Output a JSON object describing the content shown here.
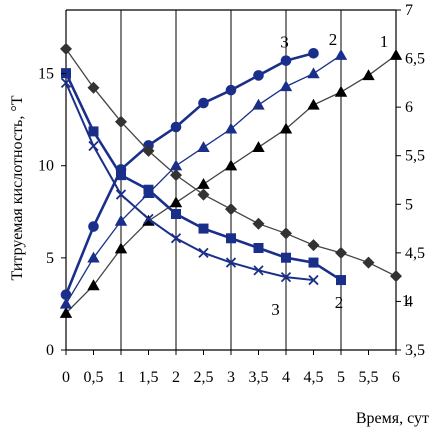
{
  "chart_data": {
    "type": "line",
    "title": "",
    "xlabel": "Время, сут",
    "ylabel": "Титруемая кислотность, °Т",
    "ylabel_right": "",
    "x_ticks": [
      "0",
      "0,5",
      "1",
      "1,5",
      "2",
      "2,5",
      "3",
      "3,5",
      "4",
      "4,5",
      "5",
      "5,5",
      "6"
    ],
    "y_left_ticks": [
      "0",
      "5",
      "10",
      "15"
    ],
    "y_right_ticks": [
      "3,5",
      "4",
      "4,5",
      "5",
      "5,5",
      "6",
      "6,5",
      "7"
    ],
    "xlim": [
      0,
      6
    ],
    "ylim_left": [
      0,
      18.45
    ],
    "ylim_right": [
      3.5,
      7
    ],
    "grid": "vertical",
    "series": [
      {
        "label": "1",
        "axis": "left",
        "marker": "triangle",
        "color": "#444444",
        "marker_color": "#000000",
        "x": [
          0,
          0.5,
          1,
          1.5,
          2,
          2.5,
          3,
          3.5,
          4,
          4.5,
          5,
          5.5,
          6
        ],
        "y": [
          2.0,
          3.5,
          5.5,
          7.0,
          8.0,
          9.0,
          10.0,
          11.0,
          12.0,
          13.3,
          14.0,
          14.9,
          16.0
        ]
      },
      {
        "label": "2",
        "axis": "left",
        "marker": "triangle",
        "color": "#1a2f8a",
        "marker_color": "#1a2f8a",
        "x": [
          0,
          0.5,
          1,
          1.5,
          2,
          2.5,
          3,
          3.5,
          4,
          4.5,
          5
        ],
        "y": [
          2.5,
          5.0,
          7.0,
          8.5,
          10.0,
          11.0,
          12.0,
          13.3,
          14.3,
          15.0,
          16.0
        ]
      },
      {
        "label": "3",
        "axis": "left",
        "marker": "circle",
        "color": "#1a2f8a",
        "marker_color": "#1a2f8a",
        "x": [
          0,
          0.5,
          1,
          1.5,
          2,
          2.5,
          3,
          3.5,
          4,
          4.5
        ],
        "y": [
          3.0,
          6.7,
          9.8,
          11.1,
          12.1,
          13.4,
          14.1,
          14.9,
          15.7,
          16.1
        ]
      },
      {
        "label": "1",
        "axis": "right",
        "marker": "diamond",
        "color": "#444444",
        "marker_color": "#333333",
        "x": [
          0,
          0.5,
          1,
          1.5,
          2,
          2.5,
          3,
          3.5,
          4,
          4.5,
          5,
          5.5,
          6
        ],
        "y": [
          6.6,
          6.2,
          5.85,
          5.55,
          5.3,
          5.1,
          4.95,
          4.8,
          4.7,
          4.58,
          4.5,
          4.4,
          4.26
        ]
      },
      {
        "label": "2",
        "axis": "right",
        "marker": "square",
        "color": "#1a2f8a",
        "marker_color": "#1a2f8a",
        "x": [
          0,
          0.5,
          1,
          1.5,
          2,
          2.5,
          3,
          3.5,
          4,
          4.5,
          5
        ],
        "y": [
          6.35,
          5.75,
          5.3,
          5.15,
          4.9,
          4.75,
          4.65,
          4.55,
          4.45,
          4.4,
          4.22
        ]
      },
      {
        "label": "3",
        "axis": "right",
        "marker": "cross",
        "color": "#1a2f8a",
        "marker_color": "#1a2f8a",
        "x": [
          0,
          0.5,
          1,
          1.5,
          2,
          2.5,
          3,
          3.5,
          4,
          4.5
        ],
        "y": [
          6.25,
          5.6,
          5.1,
          4.85,
          4.65,
          4.5,
          4.4,
          4.32,
          4.25,
          4.22
        ]
      }
    ],
    "end_labels": [
      {
        "text": "3",
        "series_index": 2
      },
      {
        "text": "2",
        "series_index": 1
      },
      {
        "text": "1",
        "series_index": 0
      },
      {
        "text": "3",
        "series_index": 5
      },
      {
        "text": "2",
        "series_index": 4
      },
      {
        "text": "1",
        "series_index": 3
      }
    ]
  }
}
